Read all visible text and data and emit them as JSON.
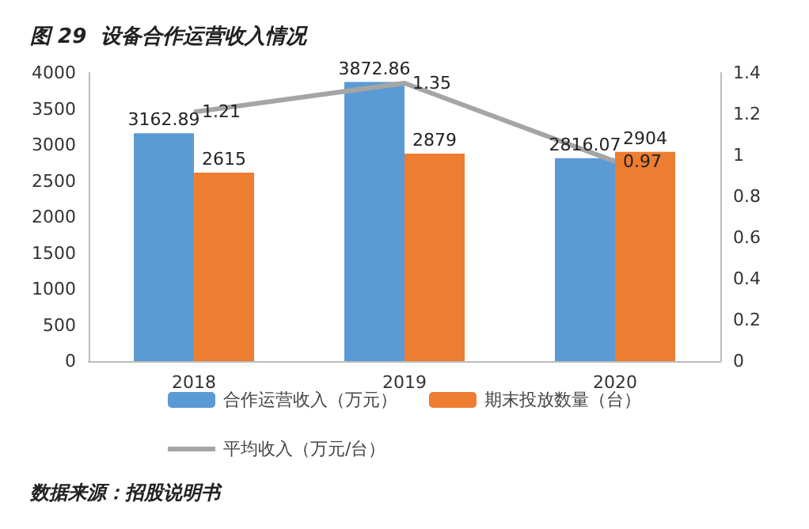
{
  "chart_data": {
    "type": "bar",
    "title": "图 29  设备合作运营收入情况",
    "annotations": [
      "数据来源：招股说明书"
    ],
    "categories": [
      "2018",
      "2019",
      "2020"
    ],
    "series": [
      {
        "name": "合作运营收入（万元）",
        "color": "#5b9bd5",
        "values": [
          3162.89,
          3872.86,
          2816.07
        ]
      },
      {
        "name": "期末投放数量（台）",
        "color": "#ed7d31",
        "values": [
          2615,
          2879,
          2904
        ]
      },
      {
        "name": "平均收入（万元/台）",
        "color": "#a5a5a5",
        "type": "line",
        "axis": "y2",
        "values": [
          1.21,
          1.35,
          0.97
        ]
      }
    ],
    "ylim": [
      0,
      4000
    ],
    "yticks": [
      0,
      500,
      1000,
      1500,
      2000,
      2500,
      3000,
      3500,
      4000
    ],
    "y2lim": [
      0,
      1.4
    ],
    "y2ticks": [
      0,
      0.2,
      0.4,
      0.6,
      0.8,
      1,
      1.2,
      1.4
    ],
    "data_labels": true,
    "grid": false,
    "legend": "bottom",
    "marker": "none",
    "line_style": "solid"
  }
}
